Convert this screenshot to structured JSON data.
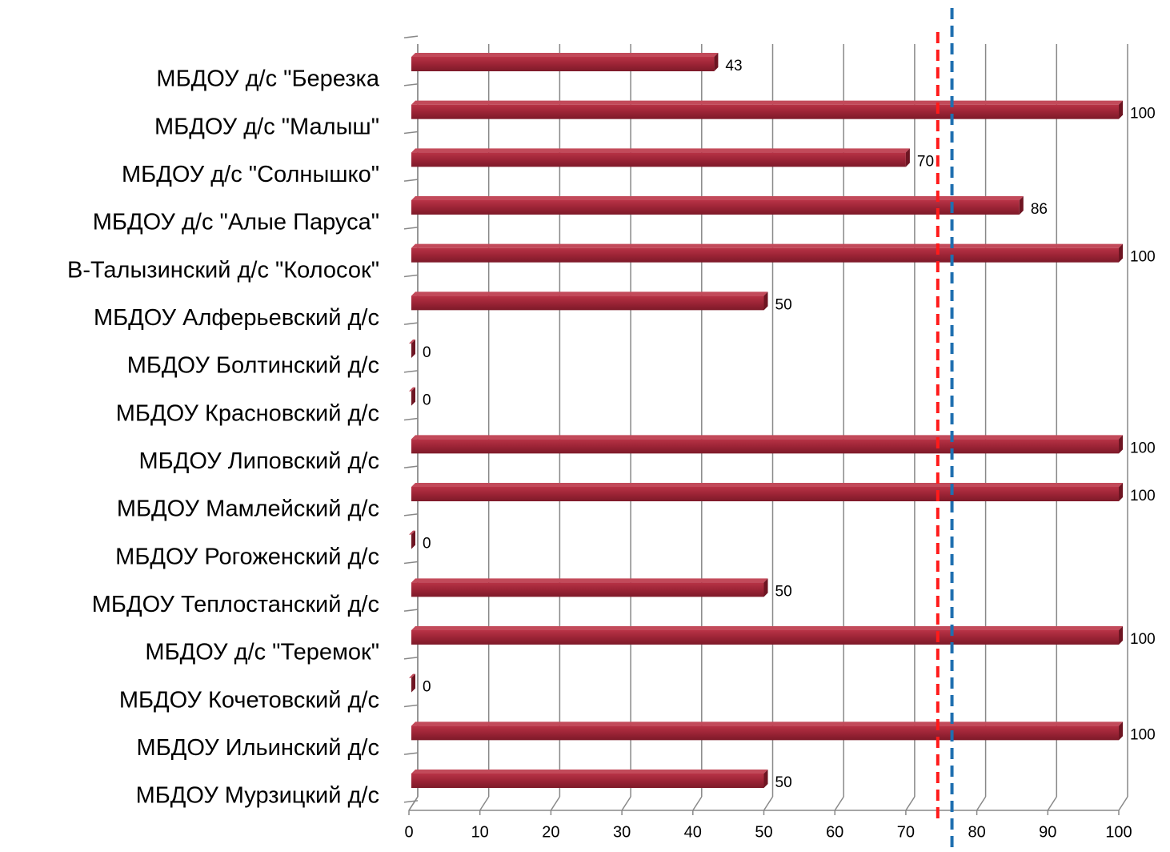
{
  "chart_data": {
    "type": "bar",
    "orientation": "horizontal",
    "categories": [
      "МБДОУ д/с \"Березка",
      "МБДОУ д/с \"Малыш\"",
      "МБДОУ д/с \"Солнышко\"",
      "МБДОУ  д/с \"Алые Паруса\"",
      "В-Талызинский д/с \"Колосок\"",
      "МБДОУ Алферьевский д/с",
      "МБДОУ Болтинский д/с",
      "МБДОУ Красновский д/с",
      "МБДОУ Липовский д/с",
      "МБДОУ Мамлейский д/с",
      "МБДОУ Рогоженский д/с",
      "МБДОУ Теплостанский д/с",
      "МБДОУ д/с \"Теремок\"",
      "МБДОУ Кочетовский д/с",
      "МБДОУ Ильинский д/с",
      "МБДОУ Мурзицкий д/с"
    ],
    "values": [
      43,
      100,
      70,
      86,
      100,
      50,
      0,
      0,
      100,
      100,
      0,
      50,
      100,
      0,
      100,
      50
    ],
    "color": "#a0283a",
    "xlim": [
      0,
      100
    ],
    "xticks": [
      0,
      10,
      20,
      30,
      40,
      50,
      60,
      70,
      80,
      90,
      100
    ],
    "grid": true,
    "reference_lines": [
      {
        "value": 74.5,
        "color": "#ff1a1a"
      },
      {
        "value": 76.5,
        "color": "#1f6fb0"
      }
    ]
  }
}
